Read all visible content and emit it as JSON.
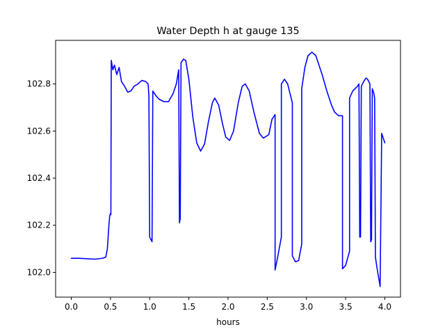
{
  "chart_data": {
    "type": "line",
    "title": "Water Depth h at gauge 135",
    "xlabel": "hours",
    "ylabel": "",
    "xlim": [
      -0.2,
      4.2
    ],
    "ylim": [
      101.895,
      102.985
    ],
    "x_ticks": [
      0.0,
      0.5,
      1.0,
      1.5,
      2.0,
      2.5,
      3.0,
      3.5,
      4.0
    ],
    "x_tick_labels": [
      "0.0",
      "0.5",
      "1.0",
      "1.5",
      "2.0",
      "2.5",
      "3.0",
      "3.5",
      "4.0"
    ],
    "y_ticks": [
      102.0,
      102.2,
      102.4,
      102.6,
      102.8
    ],
    "y_tick_labels": [
      "102.0",
      "102.2",
      "102.4",
      "102.6",
      "102.8"
    ],
    "grid": false,
    "legend": "none",
    "series": [
      {
        "color": "#0000ff",
        "points": [
          [
            0.0,
            102.06
          ],
          [
            0.1,
            102.06
          ],
          [
            0.2,
            102.058
          ],
          [
            0.3,
            102.056
          ],
          [
            0.4,
            102.06
          ],
          [
            0.44,
            102.065
          ],
          [
            0.46,
            102.1
          ],
          [
            0.48,
            102.2
          ],
          [
            0.49,
            102.24
          ],
          [
            0.5,
            102.25
          ],
          [
            0.505,
            102.245
          ],
          [
            0.51,
            102.9
          ],
          [
            0.53,
            102.86
          ],
          [
            0.55,
            102.88
          ],
          [
            0.58,
            102.84
          ],
          [
            0.61,
            102.87
          ],
          [
            0.64,
            102.81
          ],
          [
            0.68,
            102.79
          ],
          [
            0.72,
            102.765
          ],
          [
            0.76,
            102.77
          ],
          [
            0.8,
            102.79
          ],
          [
            0.85,
            102.8
          ],
          [
            0.9,
            102.815
          ],
          [
            0.95,
            102.81
          ],
          [
            0.98,
            102.8
          ],
          [
            0.99,
            102.75
          ],
          [
            1.0,
            102.15
          ],
          [
            1.03,
            102.13
          ],
          [
            1.04,
            102.77
          ],
          [
            1.08,
            102.75
          ],
          [
            1.12,
            102.735
          ],
          [
            1.18,
            102.725
          ],
          [
            1.24,
            102.725
          ],
          [
            1.3,
            102.76
          ],
          [
            1.34,
            102.8
          ],
          [
            1.37,
            102.86
          ],
          [
            1.38,
            102.21
          ],
          [
            1.39,
            102.23
          ],
          [
            1.4,
            102.89
          ],
          [
            1.43,
            102.905
          ],
          [
            1.46,
            102.9
          ],
          [
            1.5,
            102.82
          ],
          [
            1.55,
            102.66
          ],
          [
            1.6,
            102.55
          ],
          [
            1.65,
            102.515
          ],
          [
            1.7,
            102.545
          ],
          [
            1.75,
            102.64
          ],
          [
            1.8,
            102.72
          ],
          [
            1.83,
            102.74
          ],
          [
            1.88,
            102.71
          ],
          [
            1.93,
            102.63
          ],
          [
            1.97,
            102.575
          ],
          [
            2.02,
            102.56
          ],
          [
            2.07,
            102.6
          ],
          [
            2.13,
            102.72
          ],
          [
            2.18,
            102.79
          ],
          [
            2.22,
            102.8
          ],
          [
            2.27,
            102.77
          ],
          [
            2.33,
            102.68
          ],
          [
            2.4,
            102.59
          ],
          [
            2.45,
            102.57
          ],
          [
            2.52,
            102.585
          ],
          [
            2.56,
            102.65
          ],
          [
            2.6,
            102.67
          ],
          [
            2.6,
            102.01
          ],
          [
            2.63,
            102.06
          ],
          [
            2.68,
            102.15
          ],
          [
            2.68,
            102.8
          ],
          [
            2.72,
            102.82
          ],
          [
            2.76,
            102.8
          ],
          [
            2.82,
            102.72
          ],
          [
            2.82,
            102.07
          ],
          [
            2.86,
            102.045
          ],
          [
            2.9,
            102.05
          ],
          [
            2.94,
            102.12
          ],
          [
            2.94,
            102.78
          ],
          [
            2.98,
            102.87
          ],
          [
            3.02,
            102.92
          ],
          [
            3.07,
            102.935
          ],
          [
            3.12,
            102.92
          ],
          [
            3.2,
            102.84
          ],
          [
            3.26,
            102.77
          ],
          [
            3.32,
            102.71
          ],
          [
            3.36,
            102.68
          ],
          [
            3.41,
            102.665
          ],
          [
            3.46,
            102.665
          ],
          [
            3.46,
            102.015
          ],
          [
            3.5,
            102.03
          ],
          [
            3.55,
            102.09
          ],
          [
            3.55,
            102.74
          ],
          [
            3.59,
            102.77
          ],
          [
            3.65,
            102.79
          ],
          [
            3.67,
            102.8
          ],
          [
            3.68,
            102.15
          ],
          [
            3.69,
            102.15
          ],
          [
            3.7,
            102.79
          ],
          [
            3.73,
            102.81
          ],
          [
            3.76,
            102.825
          ],
          [
            3.78,
            102.82
          ],
          [
            3.81,
            102.8
          ],
          [
            3.82,
            102.13
          ],
          [
            3.83,
            102.14
          ],
          [
            3.84,
            102.78
          ],
          [
            3.86,
            102.76
          ],
          [
            3.87,
            102.74
          ],
          [
            3.88,
            102.065
          ],
          [
            3.9,
            102.02
          ],
          [
            3.94,
            101.94
          ],
          [
            3.96,
            102.59
          ],
          [
            3.97,
            102.58
          ],
          [
            4.0,
            102.55
          ]
        ]
      }
    ]
  }
}
